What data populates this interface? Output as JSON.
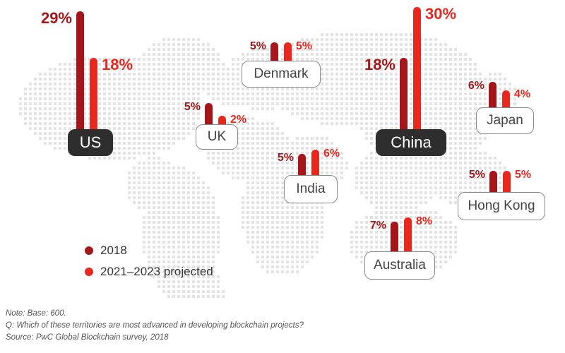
{
  "colors": {
    "series_2018": "#a4161a",
    "series_projected": "#e8281e",
    "map_dots": "#e3e3e3",
    "label_dark_bg": "#2e2e2e"
  },
  "chart_data": {
    "type": "bar",
    "title": "",
    "unit": "%",
    "series": [
      {
        "name": "2018",
        "values": [
          29,
          5,
          5,
          5,
          18,
          6,
          5,
          7
        ]
      },
      {
        "name": "2021–2023 projected",
        "values": [
          18,
          2,
          5,
          6,
          30,
          4,
          5,
          8
        ]
      }
    ],
    "categories": [
      {
        "name": "US",
        "v2018": 29,
        "vproj": 18,
        "v2018_label": "29%",
        "vproj_label": "18%",
        "style": "dark"
      },
      {
        "name": "UK",
        "v2018": 5,
        "vproj": 2,
        "v2018_label": "5%",
        "vproj_label": "2%",
        "style": "light"
      },
      {
        "name": "Denmark",
        "v2018": 5,
        "vproj": 5,
        "v2018_label": "5%",
        "vproj_label": "5%",
        "style": "light"
      },
      {
        "name": "India",
        "v2018": 5,
        "vproj": 6,
        "v2018_label": "5%",
        "vproj_label": "6%",
        "style": "light"
      },
      {
        "name": "China",
        "v2018": 18,
        "vproj": 30,
        "v2018_label": "18%",
        "vproj_label": "30%",
        "style": "dark"
      },
      {
        "name": "Japan",
        "v2018": 6,
        "vproj": 4,
        "v2018_label": "6%",
        "vproj_label": "4%",
        "style": "light"
      },
      {
        "name": "Hong Kong",
        "v2018": 5,
        "vproj": 5,
        "v2018_label": "5%",
        "vproj_label": "5%",
        "style": "light"
      },
      {
        "name": "Australia",
        "v2018": 7,
        "vproj": 8,
        "v2018_label": "7%",
        "vproj_label": "8%",
        "style": "light"
      }
    ]
  },
  "legend": {
    "item_2018": "2018",
    "item_projected": "2021–2023 projected"
  },
  "notes": {
    "base": "Note: Base: 600.",
    "question": "Q: Which of these territories are most advanced in developing blockchain projects?",
    "source": "Source: PwC Global Blockchain survey, 2018"
  }
}
